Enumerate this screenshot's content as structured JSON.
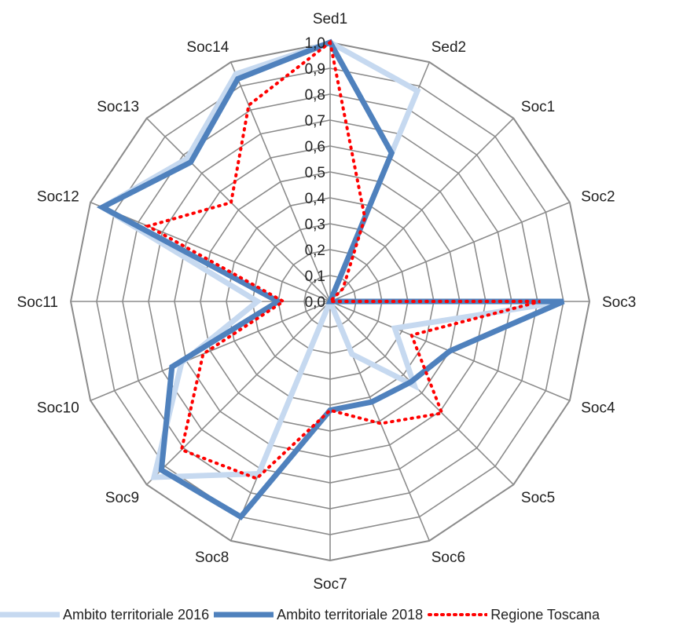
{
  "chart_data": {
    "type": "radar",
    "title": "",
    "categories": [
      "Sed1",
      "Sed2",
      "Soc1",
      "Soc2",
      "Soc3",
      "Soc4",
      "Soc5",
      "Soc6",
      "Soc7",
      "Soc8",
      "Soc9",
      "Soc10",
      "Soc11",
      "Soc12",
      "Soc13",
      "Soc14"
    ],
    "rlim": [
      0,
      1
    ],
    "ticks": [
      "0,0",
      "0,1",
      "0,2",
      "0,3",
      "0,4",
      "0,5",
      "0,6",
      "0,7",
      "0,8",
      "0,9",
      "1,0"
    ],
    "grid": true,
    "legend_position": "bottom",
    "series": [
      {
        "name": "Ambito territoriale 2016",
        "values": [
          1.0,
          0.88,
          0.0,
          0.0,
          0.9,
          0.27,
          0.46,
          0.22,
          0.0,
          0.72,
          0.96,
          0.62,
          0.28,
          0.95,
          0.78,
          0.95
        ],
        "color": "#c6d9f0",
        "style": "solid"
      },
      {
        "name": "Ambito territoriale 2018",
        "values": [
          1.0,
          0.62,
          0.0,
          0.0,
          0.9,
          0.5,
          0.44,
          0.42,
          0.42,
          0.9,
          0.92,
          0.66,
          0.2,
          0.95,
          0.76,
          0.93
        ],
        "color": "#4f81bd",
        "style": "solid"
      },
      {
        "name": "Regione Toscana",
        "values": [
          1.0,
          0.35,
          0.07,
          0.0,
          0.81,
          0.34,
          0.61,
          0.51,
          0.42,
          0.74,
          0.81,
          0.53,
          0.18,
          0.76,
          0.54,
          0.82
        ],
        "color": "#ff0000",
        "style": "dotted"
      }
    ]
  }
}
